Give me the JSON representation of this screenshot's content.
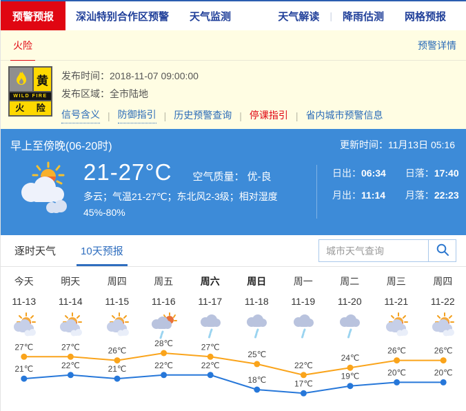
{
  "nav": {
    "active_label": "预警预报",
    "items": [
      "深汕特别合作区预警",
      "天气监测"
    ],
    "right_items": [
      "天气解读",
      "降雨估测",
      "网格预报"
    ]
  },
  "warning_bar": {
    "active_tab": "火险",
    "detail_link": "预警详情"
  },
  "warning": {
    "icon": {
      "level": "黄",
      "band": "WILD FIRE",
      "name": "火 险"
    },
    "publish_time_label": "发布时间：",
    "publish_time": "2018-11-07 09:00:00",
    "publish_area_label": "发布区域：",
    "publish_area": "全市陆地",
    "links": [
      {
        "label": "信号含义",
        "type": "dotted"
      },
      {
        "label": "防御指引",
        "type": "dotted"
      },
      {
        "label": "历史预警查询",
        "type": "plain"
      },
      {
        "label": "停课指引",
        "type": "red"
      },
      {
        "label": "省内城市预警信息",
        "type": "plain"
      }
    ]
  },
  "current": {
    "period": "早上至傍晚(06-20时)",
    "update_label": "更新时间：",
    "update_time": "11月13日 05:16",
    "temp_range": "21-27°C",
    "air_quality_label": "空气质量：",
    "air_quality": "优-良",
    "description": "多云；气温21-27℃；东北风2-3级；相对湿度45%-80%",
    "sun_moon": [
      {
        "label": "日出：",
        "value": "06:34"
      },
      {
        "label": "日落：",
        "value": "17:40"
      },
      {
        "label": "月出：",
        "value": "11:14"
      },
      {
        "label": "月落：",
        "value": "22:23"
      }
    ]
  },
  "tabs": {
    "items": [
      {
        "label": "逐时天气",
        "active": false
      },
      {
        "label": "10天预报",
        "active": true
      }
    ]
  },
  "search": {
    "placeholder": "城市天气查询"
  },
  "forecast": {
    "days": [
      {
        "day": "今天",
        "date": "11-13",
        "icon": "sun-clouds",
        "weekend": false
      },
      {
        "day": "明天",
        "date": "11-14",
        "icon": "sun-clouds",
        "weekend": false
      },
      {
        "day": "周四",
        "date": "11-15",
        "icon": "sun-clouds",
        "weekend": false
      },
      {
        "day": "周五",
        "date": "11-16",
        "icon": "sun-rain",
        "weekend": false
      },
      {
        "day": "周六",
        "date": "11-17",
        "icon": "rain",
        "weekend": true
      },
      {
        "day": "周日",
        "date": "11-18",
        "icon": "rain",
        "weekend": true
      },
      {
        "day": "周一",
        "date": "11-19",
        "icon": "rain",
        "weekend": false
      },
      {
        "day": "周二",
        "date": "11-20",
        "icon": "rain",
        "weekend": false
      },
      {
        "day": "周三",
        "date": "11-21",
        "icon": "sun-clouds",
        "weekend": false
      },
      {
        "day": "周四",
        "date": "11-22",
        "icon": "sun-clouds",
        "weekend": false
      }
    ]
  },
  "chart_data": {
    "type": "line",
    "categories": [
      "11-13",
      "11-14",
      "11-15",
      "11-16",
      "11-17",
      "11-18",
      "11-19",
      "11-20",
      "11-21",
      "11-22"
    ],
    "series": [
      {
        "name": "high",
        "color": "#faa41b",
        "values": [
          27,
          27,
          26,
          28,
          27,
          25,
          22,
          24,
          26,
          26
        ]
      },
      {
        "name": "low",
        "color": "#2677d9",
        "values": [
          21,
          22,
          21,
          22,
          22,
          18,
          17,
          19,
          20,
          20
        ]
      }
    ],
    "unit": "℃",
    "ylim": [
      15,
      30
    ],
    "grid": false,
    "legend": "none"
  },
  "colors": {
    "accent_red": "#e00612",
    "nav_blue": "#21409a",
    "link_blue": "#2b6cb8",
    "panel_yellow": "#fffde3",
    "panel_blue": "#3d8bd8",
    "tab_active_blue": "#2f6ebf",
    "warning_yellow": "#fed800"
  }
}
